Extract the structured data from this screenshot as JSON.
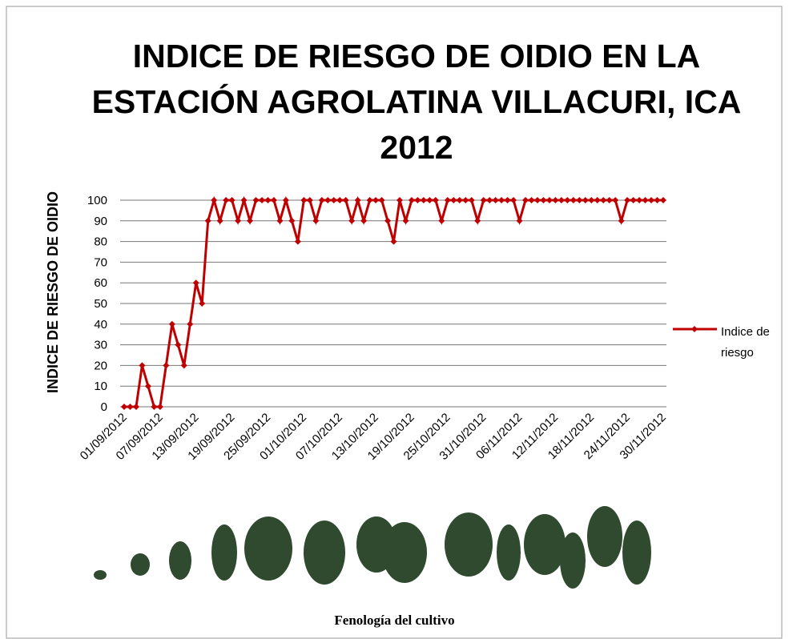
{
  "chart_data": {
    "type": "line",
    "title": "INDICE DE RIESGO DE OIDIO EN LA ESTACIÓN AGROLATINA VILLACURI, ICA 2012",
    "y_label": "INDICE DE RIESGO DE OIDIO",
    "caption": "Fenología del cultivo",
    "categories": [
      "01/09/2012",
      null,
      null,
      null,
      null,
      null,
      "07/09/2012",
      null,
      null,
      null,
      null,
      null,
      "13/09/2012",
      null,
      null,
      null,
      null,
      null,
      "19/09/2012",
      null,
      null,
      null,
      null,
      null,
      "25/09/2012",
      null,
      null,
      null,
      null,
      null,
      "01/10/2012",
      null,
      null,
      null,
      null,
      null,
      "07/10/2012",
      null,
      null,
      null,
      null,
      null,
      "13/10/2012",
      null,
      null,
      null,
      null,
      null,
      "19/10/2012",
      null,
      null,
      null,
      null,
      null,
      "25/10/2012",
      null,
      null,
      null,
      null,
      null,
      "31/10/2012",
      null,
      null,
      null,
      null,
      null,
      "06/11/2012",
      null,
      null,
      null,
      null,
      null,
      "12/11/2012",
      null,
      null,
      null,
      null,
      null,
      "18/11/2012",
      null,
      null,
      null,
      null,
      null,
      "24/11/2012",
      null,
      null,
      null,
      null,
      null,
      "30/11/2012"
    ],
    "series": [
      {
        "name": "Indice de riesgo",
        "color": "#c00000",
        "values": [
          0,
          0,
          0,
          20,
          10,
          0,
          0,
          20,
          40,
          30,
          20,
          40,
          60,
          50,
          90,
          100,
          90,
          100,
          100,
          90,
          100,
          90,
          100,
          100,
          100,
          100,
          90,
          100,
          90,
          80,
          100,
          100,
          90,
          100,
          100,
          100,
          100,
          100,
          90,
          100,
          90,
          100,
          100,
          100,
          90,
          80,
          100,
          90,
          100,
          100,
          100,
          100,
          100,
          90,
          100,
          100,
          100,
          100,
          100,
          90,
          100,
          100,
          100,
          100,
          100,
          100,
          90,
          100,
          100,
          100,
          100,
          100,
          100,
          100,
          100,
          100,
          100,
          100,
          100,
          100,
          100,
          100,
          100,
          90,
          100,
          100,
          100,
          100,
          100,
          100,
          100
        ]
      }
    ],
    "ylim": [
      0,
      100
    ],
    "yticks": [
      0,
      10,
      20,
      30,
      40,
      50,
      60,
      70,
      80,
      90,
      100
    ],
    "grid": true,
    "legend": "right"
  }
}
